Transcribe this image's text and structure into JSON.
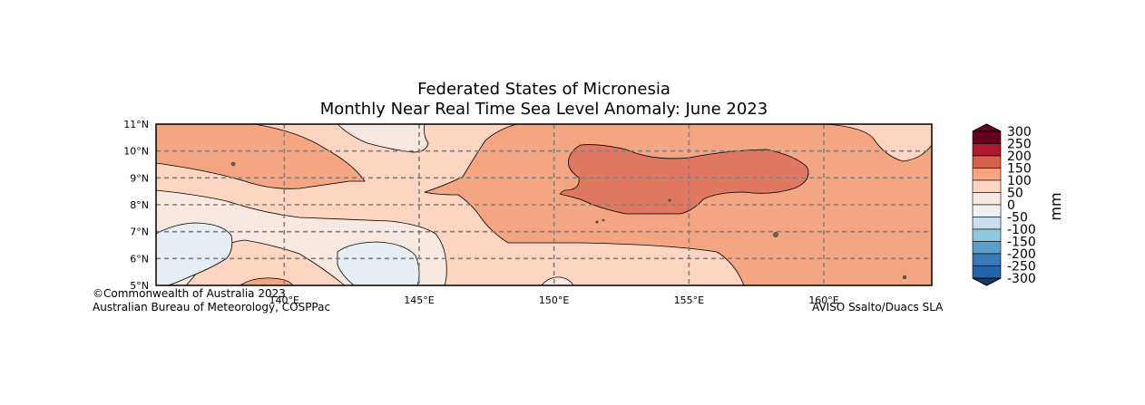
{
  "title": {
    "line1": "Federated States of Micronesia",
    "line2": "Monthly Near Real Time Sea Level Anomaly: June 2023"
  },
  "map": {
    "lon_range": [
      135.25,
      164
    ],
    "lat_range": [
      5,
      11
    ],
    "lat_ticks": [
      {
        "value": 5,
        "label": "5°N"
      },
      {
        "value": 6,
        "label": "6°N"
      },
      {
        "value": 7,
        "label": "7°N"
      },
      {
        "value": 8,
        "label": "8°N"
      },
      {
        "value": 9,
        "label": "9°N"
      },
      {
        "value": 10,
        "label": "10°N"
      },
      {
        "value": 11,
        "label": "11°N"
      }
    ],
    "lon_ticks": [
      {
        "value": 140,
        "label": "140°E"
      },
      {
        "value": 145,
        "label": "145°E"
      },
      {
        "value": 150,
        "label": "150°E"
      },
      {
        "value": 155,
        "label": "155°E"
      },
      {
        "value": 160,
        "label": "160°E"
      }
    ]
  },
  "colorbar": {
    "unit": "mm",
    "levels": [
      "300",
      "250",
      "200",
      "150",
      "100",
      "50",
      "0",
      "-50",
      "-100",
      "-150",
      "-200",
      "-250",
      "-300"
    ],
    "colors": [
      "#67001f",
      "#b2182b",
      "#d6604d",
      "#f4a582",
      "#fdd5c1",
      "#f7e9e2",
      "#eef0f3",
      "#c9dfed",
      "#92c5de",
      "#5a9ec9",
      "#3a78b6",
      "#2166ac"
    ],
    "extend_top_color": "#67001f",
    "extend_bottom_color": "#123d6b"
  },
  "fill_colors": {
    "c150": "#f4a582",
    "c200": "#e07760",
    "c100": "#fdd5c1",
    "c50": "#f7e9e2",
    "cneg": "#e6eef3"
  },
  "credits": {
    "line1": "©Commonwealth of Australia 2023",
    "line2": "Australian Bureau of Meteorology, COSPPac",
    "source": "AVISO Ssalto/Duacs SLA"
  }
}
